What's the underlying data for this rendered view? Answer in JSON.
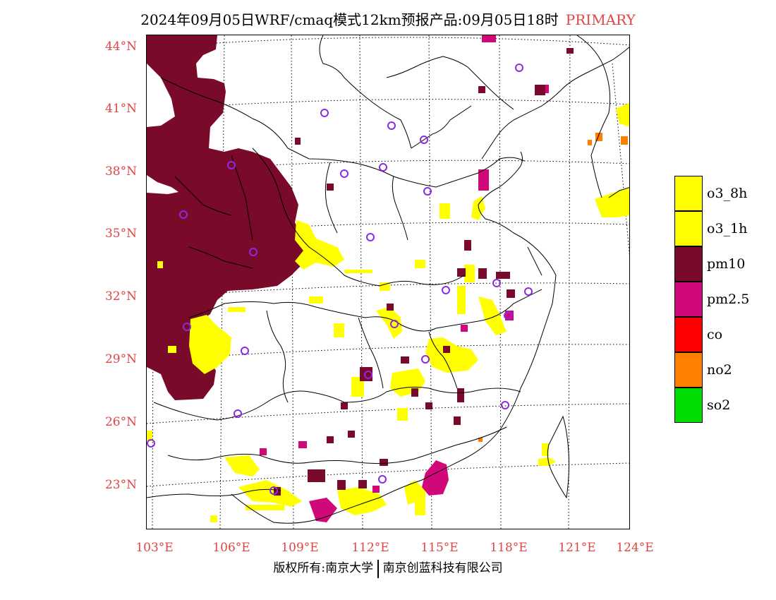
{
  "header": {
    "title": "2024年09月05日WRF/cmaq模式12km预报产品:09月05日18时",
    "tag": "PRIMARY"
  },
  "axes": {
    "lat_labels": [
      "44°N",
      "41°N",
      "38°N",
      "35°N",
      "32°N",
      "29°N",
      "26°N",
      "23°N"
    ],
    "lon_labels": [
      "103°E",
      "106°E",
      "109°E",
      "112°E",
      "115°E",
      "118°E",
      "121°E",
      "124°E"
    ]
  },
  "legend": {
    "items": [
      {
        "label": "o3_8h",
        "color": "#ffff00"
      },
      {
        "label": "o3_1h",
        "color": "#ffff00"
      },
      {
        "label": "pm10",
        "color": "#7a0a2a"
      },
      {
        "label": "pm2.5",
        "color": "#d0087a"
      },
      {
        "label": "co",
        "color": "#ff0000"
      },
      {
        "label": "no2",
        "color": "#ff7f00"
      },
      {
        "label": "so2",
        "color": "#00dd00"
      }
    ]
  },
  "footer": {
    "left": "版权所有:南京大学",
    "right": "南京创蓝科技有限公司"
  },
  "colors": {
    "pm10": "#7a0a2a",
    "pm25": "#d0087a",
    "o3": "#ffff00",
    "no2": "#ff7f00",
    "station": "#8a2be2",
    "label": "#e04545"
  }
}
